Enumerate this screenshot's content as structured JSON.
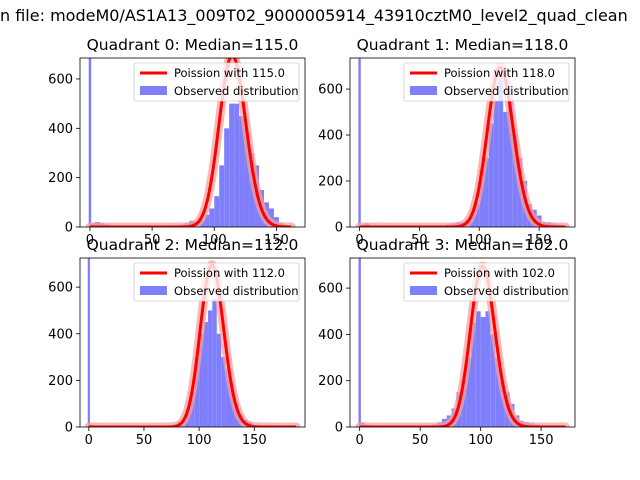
{
  "figure": {
    "suptitle": "n file: modeM0/AS1A13_009T02_9000005914_43910cztM0_level2_quad_clean"
  },
  "colors": {
    "hist": "#7f7ffb",
    "curve": "#ff0000",
    "curve_halo": "#f4a0a0",
    "spike": "#7f7ffb"
  },
  "chart_data": [
    {
      "type": "bar",
      "title": "Quadrant 0: Median=115.0",
      "xlim": [
        -8,
        173
      ],
      "ylim": [
        0,
        685
      ],
      "xticks": [
        0,
        50,
        100,
        150
      ],
      "yticks": [
        0,
        200,
        400,
        600
      ],
      "legend": {
        "placement": "top-right",
        "entries": [
          "Poission with 115.0",
          "Observed distribution"
        ]
      },
      "poisson_lambda": 115,
      "spike": {
        "x": 0,
        "value": 685
      },
      "hist_bin_width": 4,
      "hist": {
        "x": [
          2,
          6,
          10,
          14,
          18,
          22,
          26,
          54,
          58,
          62,
          66,
          70,
          74,
          78,
          82,
          86,
          90,
          94,
          98,
          102,
          106,
          110,
          114,
          118,
          122,
          126,
          130,
          134,
          138,
          142,
          146,
          150,
          154,
          158
        ],
        "values": [
          15,
          20,
          15,
          10,
          5,
          5,
          3,
          3,
          3,
          3,
          5,
          8,
          10,
          15,
          25,
          20,
          30,
          50,
          75,
          125,
          250,
          400,
          500,
          500,
          450,
          400,
          300,
          250,
          150,
          100,
          75,
          40,
          15,
          5
        ]
      },
      "curve_x_range": [
        0,
        162
      ]
    },
    {
      "type": "bar",
      "title": "Quadrant 1: Median=118.0",
      "xlim": [
        -8,
        180
      ],
      "ylim": [
        0,
        735
      ],
      "xticks": [
        0,
        50,
        100,
        150
      ],
      "yticks": [
        0,
        200,
        400,
        600
      ],
      "legend": {
        "placement": "top-right",
        "entries": [
          "Poission with 118.0",
          "Observed distribution"
        ]
      },
      "poisson_lambda": 118,
      "spike": {
        "x": 0,
        "value": 735
      },
      "hist_bin_width": 4,
      "hist": {
        "x": [
          2,
          6,
          10,
          70,
          74,
          78,
          82,
          86,
          90,
          94,
          98,
          102,
          106,
          110,
          114,
          118,
          122,
          126,
          130,
          134,
          138,
          142,
          146,
          150,
          154,
          158,
          162,
          166
        ],
        "values": [
          10,
          15,
          5,
          5,
          10,
          15,
          20,
          20,
          30,
          50,
          100,
          250,
          300,
          450,
          550,
          650,
          500,
          550,
          400,
          300,
          200,
          100,
          75,
          50,
          20,
          20,
          15,
          10
        ]
      },
      "curve_x_range": [
        0,
        172
      ]
    },
    {
      "type": "bar",
      "title": "Quadrant 2: Median=112.0",
      "xlim": [
        -8,
        196
      ],
      "ylim": [
        0,
        725
      ],
      "xticks": [
        0,
        50,
        100,
        150
      ],
      "yticks": [
        0,
        200,
        400,
        600
      ],
      "legend": {
        "placement": "top-right",
        "entries": [
          "Poission with 112.0",
          "Observed distribution"
        ]
      },
      "poisson_lambda": 112,
      "spike": {
        "x": 0,
        "value": 725
      },
      "hist_bin_width": 4,
      "hist": {
        "x": [
          2,
          6,
          70,
          74,
          78,
          82,
          86,
          90,
          94,
          98,
          102,
          106,
          110,
          114,
          118,
          122,
          126,
          130,
          134,
          138,
          142,
          146,
          150,
          154,
          158,
          162
        ],
        "values": [
          10,
          5,
          3,
          5,
          10,
          20,
          35,
          80,
          150,
          300,
          400,
          450,
          500,
          550,
          400,
          300,
          250,
          175,
          100,
          50,
          30,
          20,
          10,
          5,
          5,
          3
        ]
      },
      "curve_x_range": [
        0,
        188
      ]
    },
    {
      "type": "bar",
      "title": "Quadrant 3: Median=102.0",
      "xlim": [
        -8,
        178
      ],
      "ylim": [
        0,
        730
      ],
      "xticks": [
        0,
        50,
        100,
        150
      ],
      "yticks": [
        0,
        200,
        400,
        600
      ],
      "legend": {
        "placement": "top-right",
        "entries": [
          "Poission with 102.0",
          "Observed distribution"
        ]
      },
      "poisson_lambda": 102,
      "spike": {
        "x": 0,
        "value": 730
      },
      "hist_bin_width": 4,
      "hist": {
        "x": [
          2,
          6,
          54,
          58,
          62,
          66,
          70,
          74,
          78,
          82,
          86,
          90,
          94,
          98,
          102,
          106,
          110,
          114,
          118,
          122,
          126,
          130,
          134,
          138,
          142,
          146,
          150,
          154
        ],
        "values": [
          20,
          10,
          3,
          5,
          10,
          20,
          35,
          50,
          80,
          150,
          200,
          300,
          450,
          500,
          475,
          500,
          400,
          300,
          200,
          150,
          100,
          50,
          25,
          20,
          15,
          10,
          5,
          3
        ]
      },
      "curve_x_range": [
        0,
        170
      ]
    }
  ]
}
